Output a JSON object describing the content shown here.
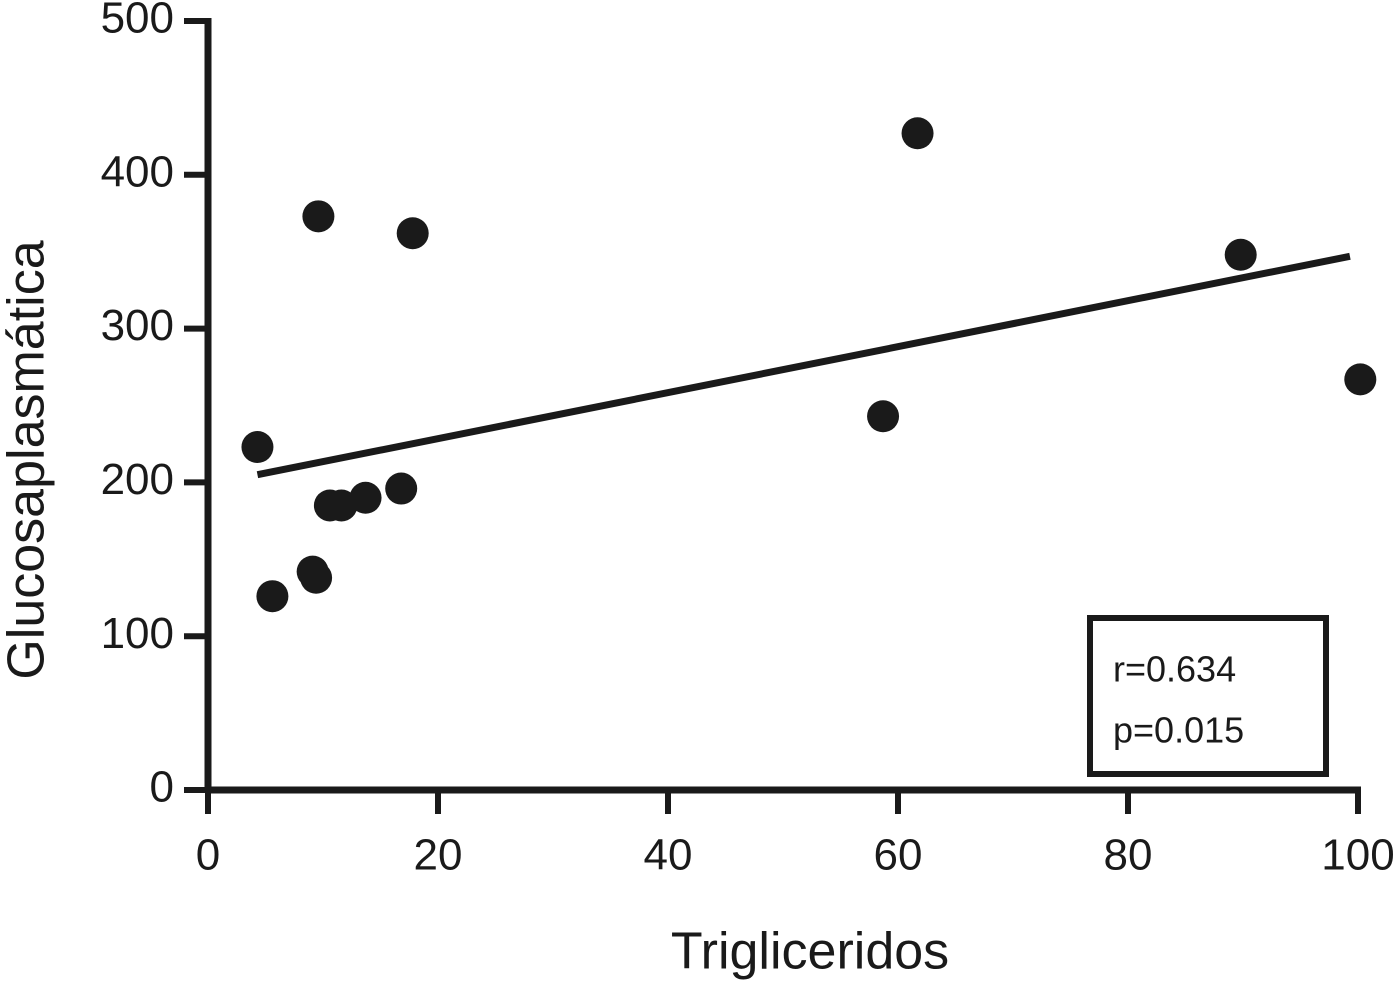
{
  "chart_data": {
    "type": "scatter",
    "x_label": "Trigliceridos",
    "y_label": "Glucosaplasmática",
    "x": [
      4.3,
      5.6,
      9.6,
      9.1,
      9.4,
      10.6,
      11.6,
      13.7,
      16.8,
      17.8,
      58.7,
      61.7,
      89.8,
      100.2
    ],
    "values": [
      223,
      126,
      373,
      142,
      138,
      185,
      185,
      190,
      196,
      362,
      243,
      427,
      348,
      267
    ],
    "color": "#1a1a1a",
    "fit_line": {
      "x": [
        4.3,
        99.3
      ],
      "y": [
        205,
        347
      ]
    },
    "annotations": [
      "r=0.634",
      "p=0.015"
    ],
    "xlim": [
      0,
      100
    ],
    "ylim": [
      0,
      500
    ],
    "xticks": [
      0,
      20,
      40,
      60,
      80,
      100
    ],
    "yticks": [
      0,
      100,
      200,
      300,
      400,
      500
    ]
  }
}
